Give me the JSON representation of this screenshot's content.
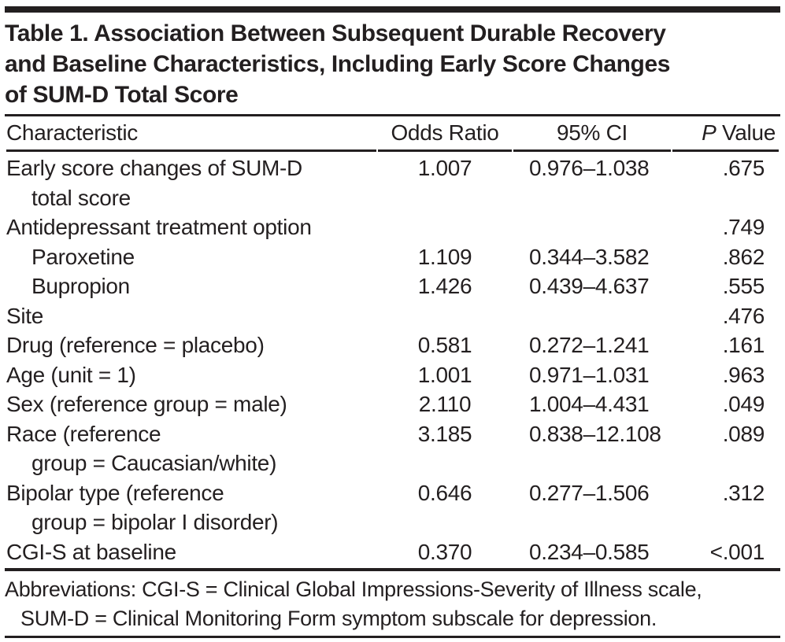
{
  "title": {
    "lines": [
      "Table 1. Association Between Subsequent Durable Recovery",
      "and Baseline Characteristics, Including Early Score Changes",
      "of SUM-D Total Score"
    ]
  },
  "table": {
    "headers": {
      "characteristic": "Characteristic",
      "odds_ratio": "Odds Ratio",
      "ci": "95% CI",
      "p_italic": "P",
      "p_rest": " Value"
    },
    "rows": [
      {
        "label": "Early score changes of SUM-D",
        "label2": "total score",
        "indent": false,
        "odds_ratio": "1.007",
        "ci": "0.976–1.038",
        "p": ".675"
      },
      {
        "label": "Antidepressant treatment option",
        "label2": "",
        "indent": false,
        "odds_ratio": "",
        "ci": "",
        "p": ".749"
      },
      {
        "label": "Paroxetine",
        "label2": "",
        "indent": true,
        "odds_ratio": "1.109",
        "ci": "0.344–3.582",
        "p": ".862"
      },
      {
        "label": "Bupropion",
        "label2": "",
        "indent": true,
        "odds_ratio": "1.426",
        "ci": "0.439–4.637",
        "p": ".555"
      },
      {
        "label": "Site",
        "label2": "",
        "indent": false,
        "odds_ratio": "",
        "ci": "",
        "p": ".476"
      },
      {
        "label": "Drug (reference = placebo)",
        "label2": "",
        "indent": false,
        "odds_ratio": "0.581",
        "ci": "0.272–1.241",
        "p": ".161"
      },
      {
        "label": "Age (unit = 1)",
        "label2": "",
        "indent": false,
        "odds_ratio": "1.001",
        "ci": "0.971–1.031",
        "p": ".963"
      },
      {
        "label": "Sex (reference group = male)",
        "label2": "",
        "indent": false,
        "odds_ratio": "2.110",
        "ci": "1.004–4.431",
        "p": ".049"
      },
      {
        "label": "Race (reference",
        "label2": "group = Caucasian/white)",
        "indent": false,
        "odds_ratio": "3.185",
        "ci": "0.838–12.108",
        "p": ".089"
      },
      {
        "label": "Bipolar type (reference",
        "label2": "group = bipolar I disorder)",
        "indent": false,
        "odds_ratio": "0.646",
        "ci": "0.277–1.506",
        "p": ".312"
      },
      {
        "label": "CGI-S at baseline",
        "label2": "",
        "indent": false,
        "odds_ratio": "0.370",
        "ci": "0.234–0.585",
        "p": "<.001"
      }
    ]
  },
  "footnote": {
    "lines": [
      "Abbreviations: CGI-S = Clinical Global Impressions-Severity of Illness scale,",
      "SUM-D = Clinical Monitoring Form symptom subscale for depression."
    ]
  },
  "colors": {
    "text": "#231f20",
    "rule": "#231f20",
    "background": "#ffffff"
  }
}
